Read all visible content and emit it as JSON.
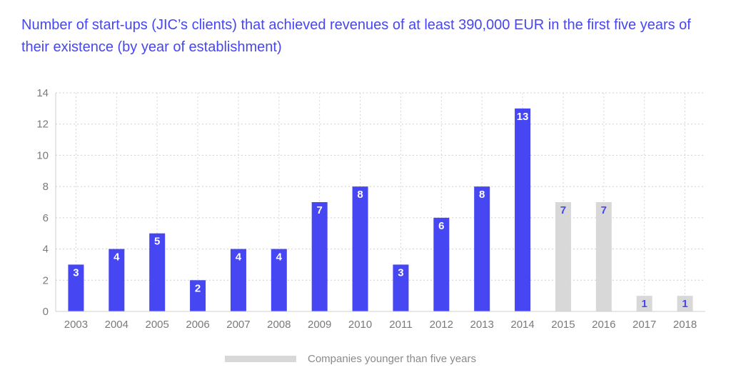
{
  "chart_data": {
    "type": "bar",
    "title": "Number of start-ups (JIC’s clients) that achieved revenues of at least 390,000 EUR in the first five years of their existence (by year of establishment)",
    "categories": [
      "2003",
      "2004",
      "2005",
      "2006",
      "2007",
      "2008",
      "2009",
      "2010",
      "2011",
      "2012",
      "2013",
      "2014",
      "2015",
      "2016",
      "2017",
      "2018"
    ],
    "values": [
      3,
      4,
      5,
      2,
      4,
      4,
      7,
      8,
      3,
      6,
      8,
      13,
      7,
      7,
      1,
      1
    ],
    "young_company_categories": [
      "2015",
      "2016",
      "2017",
      "2018"
    ],
    "ylim": [
      0,
      14
    ],
    "yticks": [
      0,
      2,
      4,
      6,
      8,
      10,
      12,
      14
    ],
    "grid": true,
    "colors": {
      "main": "#4646f2",
      "young": "#d8d8d8",
      "label_on_main": "#ffffff",
      "label_on_young": "#4646f2"
    },
    "legend": {
      "label": "Companies younger than five years",
      "position": "bottom"
    }
  }
}
